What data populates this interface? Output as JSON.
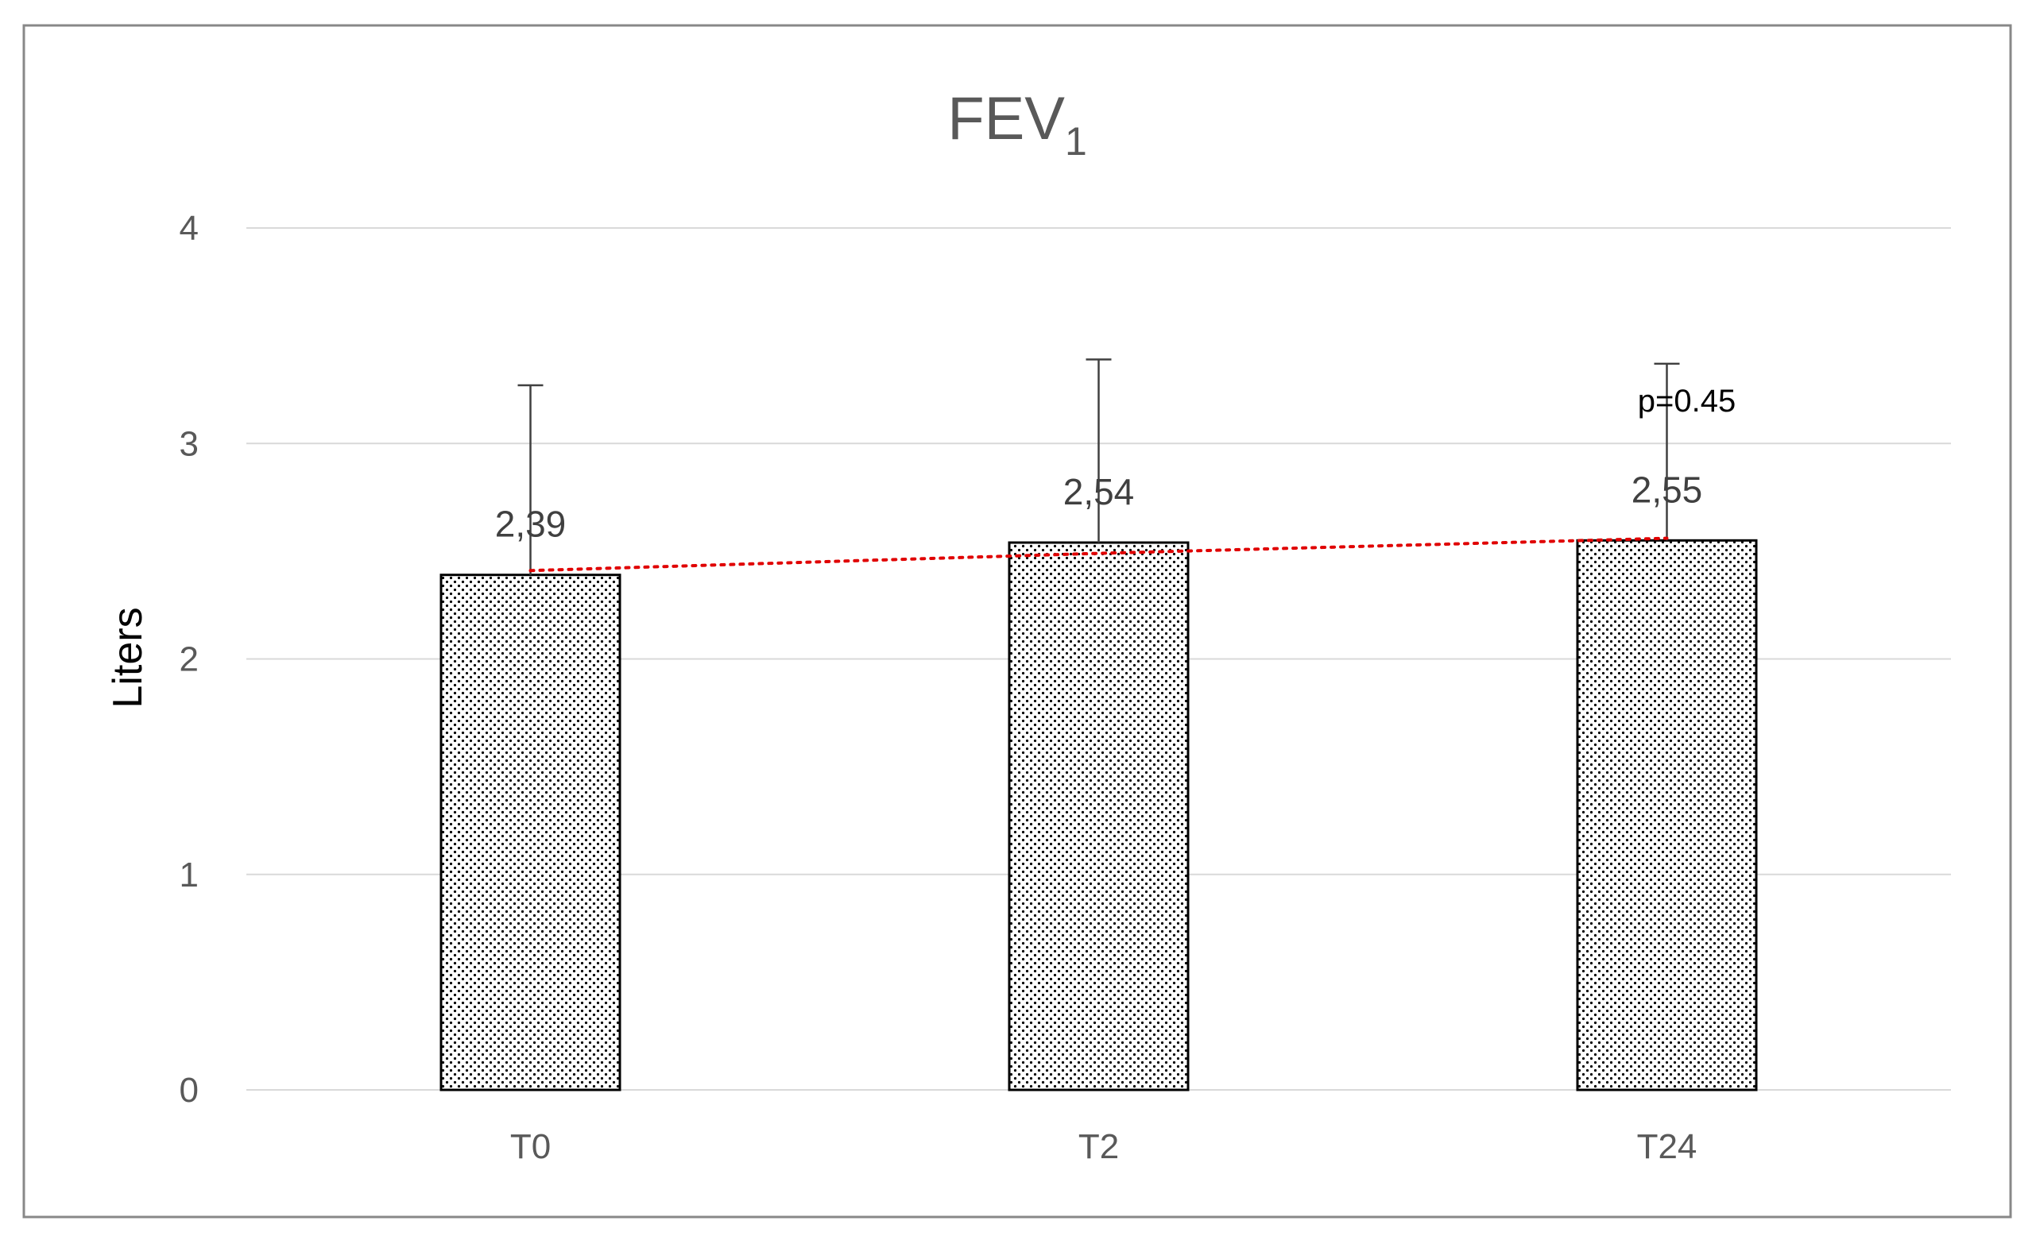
{
  "chart_data": {
    "type": "bar",
    "title": "FEV",
    "title_subscript": "1",
    "xlabel": "",
    "ylabel": "Liters",
    "ylim": [
      0,
      4
    ],
    "yticks": [
      0,
      1,
      2,
      3,
      4
    ],
    "grid": true,
    "categories": [
      "T0",
      "T2",
      "T24"
    ],
    "values": [
      2.39,
      2.54,
      2.55
    ],
    "value_labels": [
      "2,39",
      "2,54",
      "2,55"
    ],
    "error_upper": [
      3.27,
      3.39,
      3.37
    ],
    "trendline": {
      "style": "dotted",
      "color": "#e00000",
      "values": [
        2.41,
        2.49,
        2.56
      ]
    },
    "annotations": [
      {
        "text": "p=0.45",
        "category": "T24",
        "y": 3.2
      }
    ],
    "bar_fill": "dotted pattern",
    "colors": {
      "bar_edge": "#000000",
      "dots": "#000000",
      "grid": "#d9d9d9",
      "error_bar": "#404040",
      "trend": "#e00000",
      "frame": "#888888"
    }
  }
}
